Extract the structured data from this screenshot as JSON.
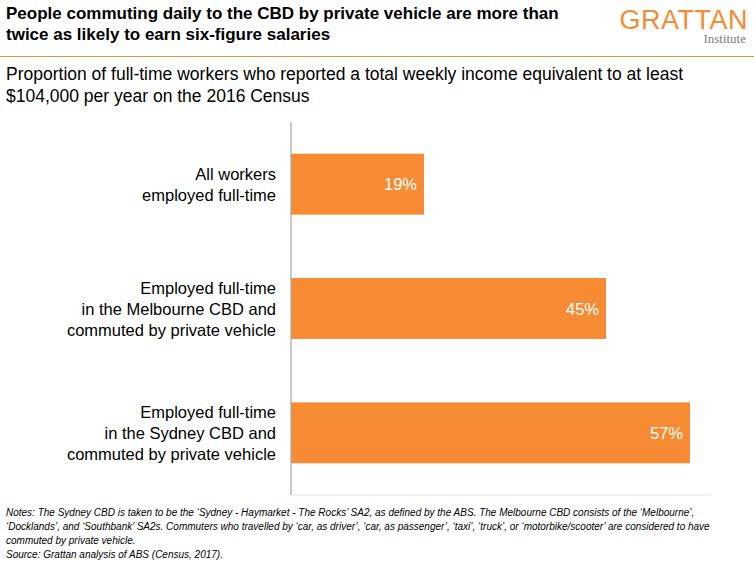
{
  "chart_data": {
    "type": "bar",
    "orientation": "horizontal",
    "title": "People commuting daily to the CBD by private vehicle are more than twice as likely to earn six-figure salaries",
    "subtitle": "Proportion of full-time workers who reported a total weekly income equivalent to at least $104,000 per year on the 2016 Census",
    "logo": "GRATTAN",
    "logo_subtitle": "Institute",
    "categories": [
      "All workers\nemployed full-time",
      "Employed full-time\nin the Melbourne CBD and\ncommuted by private vehicle",
      "Employed full-time\nin the Sydney CBD and\ncommuted by private vehicle"
    ],
    "values": [
      19,
      45,
      57
    ],
    "value_labels": [
      "19%",
      "45%",
      "57%"
    ],
    "color": "#f68b33",
    "xlim": [
      0,
      60
    ],
    "data_labels": true,
    "tick_labels": "y",
    "notes": "Notes: The Sydney CBD is taken to be the ‘Sydney - Haymarket - The Rocks’ SA2, as defined by the ABS. The Melbourne CBD consists of the ‘Melbourne’, ‘Docklands’, and ‘Southbank’ SA2s. Commuters who travelled by ‘car, as driver’, ‘car, as passenger’, ‘taxi’, ‘truck’, or ‘motorbike/scooter’ are considered to have commuted by private vehicle.",
    "source": "Source: Grattan analysis of ABS (Census, 2017)."
  }
}
